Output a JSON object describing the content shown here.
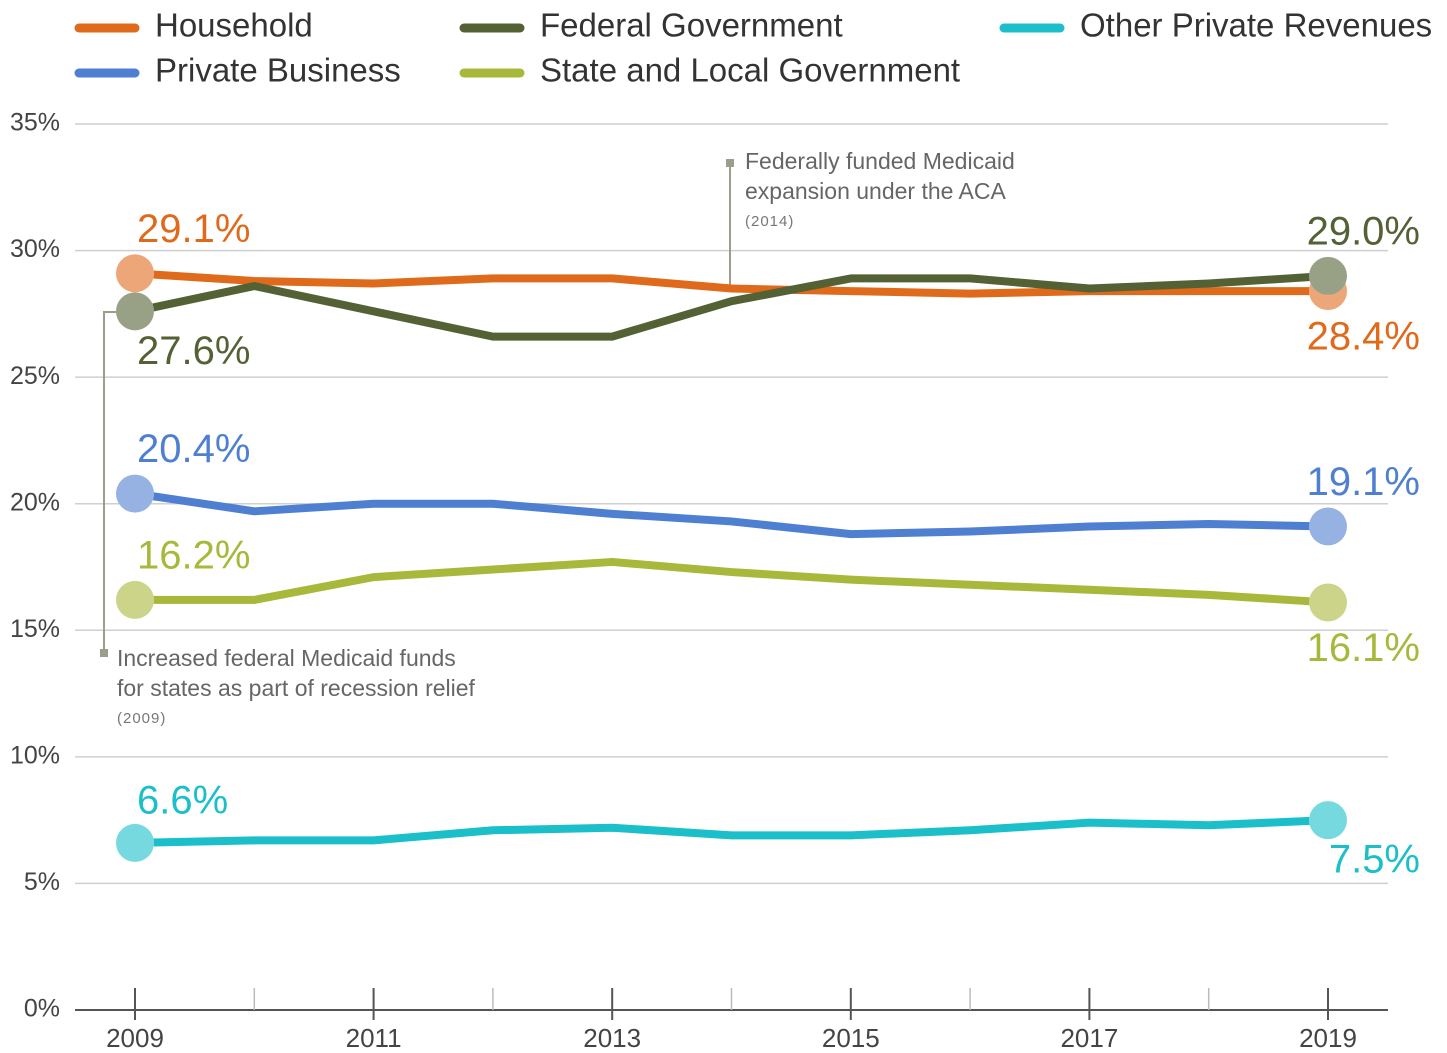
{
  "chart_data": {
    "type": "line",
    "x": [
      2009,
      2010,
      2011,
      2012,
      2013,
      2014,
      2015,
      2016,
      2017,
      2018,
      2019
    ],
    "xlim": [
      2009,
      2019
    ],
    "xticks": [
      2009,
      2011,
      2013,
      2015,
      2017,
      2019
    ],
    "ylim": [
      0,
      35
    ],
    "yticks": [
      {
        "value": 0,
        "label": "0%"
      },
      {
        "value": 5,
        "label": "5%"
      },
      {
        "value": 10,
        "label": "10%"
      },
      {
        "value": 15,
        "label": "15%"
      },
      {
        "value": 20,
        "label": "20%"
      },
      {
        "value": 25,
        "label": "25%"
      },
      {
        "value": 30,
        "label": "30%"
      },
      {
        "value": 35,
        "label": "35%"
      }
    ],
    "grid": true,
    "series": [
      {
        "name": "Household",
        "color": "#e06a1c",
        "values": [
          29.1,
          28.8,
          28.7,
          28.9,
          28.9,
          28.5,
          28.4,
          28.3,
          28.4,
          28.4,
          28.4
        ],
        "value_labels": [
          "29.1%",
          null,
          null,
          null,
          null,
          null,
          null,
          null,
          null,
          null,
          "28.4%"
        ]
      },
      {
        "name": "Private Business",
        "color": "#4f7fd0",
        "values": [
          20.4,
          19.7,
          20.0,
          20.0,
          19.6,
          19.3,
          18.8,
          18.9,
          19.1,
          19.2,
          19.1
        ],
        "value_labels": [
          "20.4%",
          null,
          null,
          null,
          null,
          null,
          null,
          null,
          null,
          null,
          "19.1%"
        ]
      },
      {
        "name": "Federal Government",
        "color": "#536135",
        "values": [
          27.6,
          28.6,
          27.6,
          26.6,
          26.6,
          28.0,
          28.9,
          28.9,
          28.5,
          28.7,
          29.0
        ],
        "value_labels": [
          "27.6%",
          null,
          null,
          null,
          null,
          null,
          null,
          null,
          null,
          null,
          "29.0%"
        ]
      },
      {
        "name": "State and Local Government",
        "color": "#a8b83a",
        "values": [
          16.2,
          16.2,
          17.1,
          17.4,
          17.7,
          17.3,
          17.0,
          16.8,
          16.6,
          16.4,
          16.1
        ],
        "value_labels": [
          "16.2%",
          null,
          null,
          null,
          null,
          null,
          null,
          null,
          null,
          null,
          "16.1%"
        ]
      },
      {
        "name": "Other Private Revenues",
        "color": "#1abfc9",
        "values": [
          6.6,
          6.7,
          6.7,
          7.1,
          7.2,
          6.9,
          6.9,
          7.1,
          7.4,
          7.3,
          7.5
        ],
        "value_labels": [
          "6.6%",
          null,
          null,
          null,
          null,
          null,
          null,
          null,
          null,
          null,
          "7.5%"
        ]
      }
    ],
    "annotations": [
      {
        "lines": [
          "Federally funded Medicaid",
          "expansion under the ACA"
        ],
        "note": "(2014)"
      },
      {
        "lines": [
          "Increased federal Medicaid funds",
          "for states as part of recession relief"
        ],
        "note": "(2009)"
      }
    ]
  }
}
